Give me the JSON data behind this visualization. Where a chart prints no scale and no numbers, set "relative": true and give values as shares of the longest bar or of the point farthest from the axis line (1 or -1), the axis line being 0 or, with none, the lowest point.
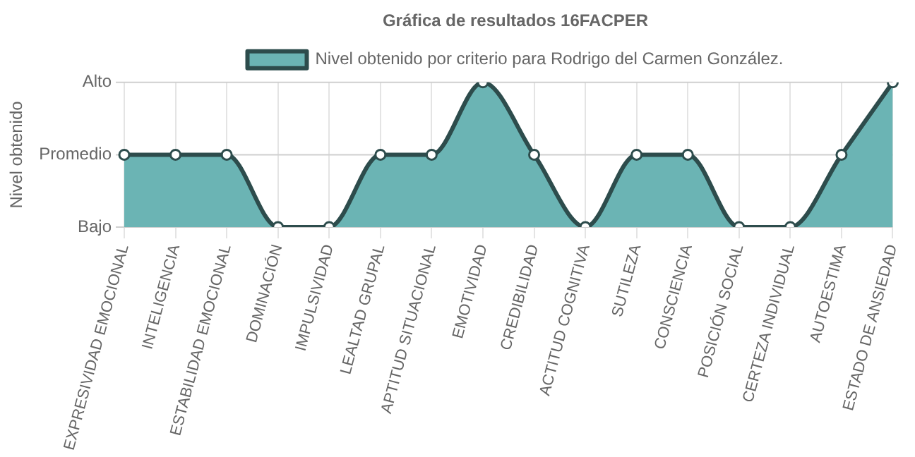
{
  "chart_data": {
    "type": "area",
    "title": "Gráfica de resultados 16FACPER",
    "ylabel": "Nivel obtenido",
    "categories": [
      "EXPRESIVIDAD EMOCIONAL",
      "INTELIGENCIA",
      "ESTABILIDAD EMOCIONAL",
      "DOMINACIÓN",
      "IMPULSIVIDAD",
      "LEALTAD GRUPAL",
      "APTITUD SITUACIONAL",
      "EMOTIVIDAD",
      "CREDIBILIDAD",
      "ACTITUD COGNITIVA",
      "SUTILEZA",
      "CONSCIENCIA",
      "POSICIÓN SOCIAL",
      "CERTEZA INDIVIDUAL",
      "AUTOESTIMA",
      "ESTADO DE ANSIEDAD"
    ],
    "series": [
      {
        "name": "Nivel obtenido por criterio para Rodrigo del Carmen González.",
        "color": "#6bb4b4",
        "values": [
          0.5,
          0.5,
          0.5,
          0,
          0,
          0.5,
          0.5,
          1,
          0.5,
          0,
          0.5,
          0.5,
          0,
          0,
          0.5,
          1
        ]
      }
    ],
    "relative": true,
    "ref_lines": [
      {
        "axis": "y",
        "value": 0,
        "label": "Bajo",
        "color": "#cfcfcf"
      },
      {
        "axis": "y",
        "value": 0.5,
        "label": "Promedio",
        "color": "#cfcfcf"
      },
      {
        "axis": "y",
        "value": 1,
        "label": "Alto",
        "color": "#cfcfcf"
      }
    ],
    "grid": true,
    "legend": "top",
    "marker": "circle",
    "line_style": "solid"
  }
}
